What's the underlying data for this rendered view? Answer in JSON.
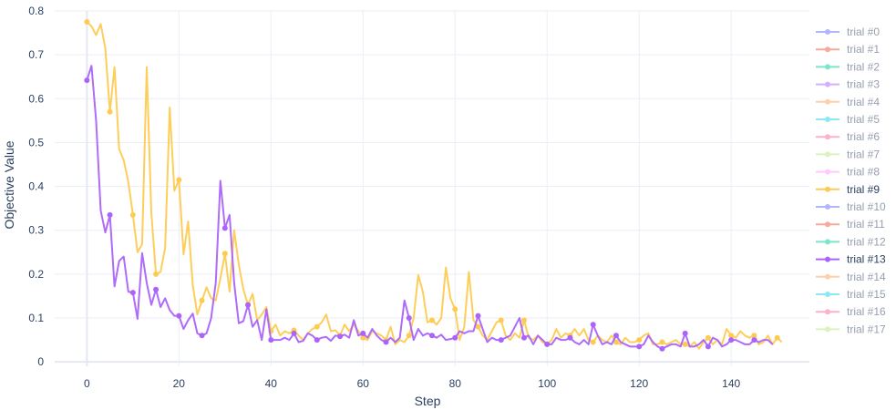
{
  "chart_data": {
    "type": "line",
    "title": "",
    "xlabel": "Step",
    "ylabel": "Objective Value",
    "xlim": [
      -7,
      157
    ],
    "ylim": [
      -0.01,
      0.8
    ],
    "x_ticks": [
      0,
      20,
      40,
      60,
      80,
      100,
      120,
      140
    ],
    "y_ticks": [
      0,
      0.1,
      0.2,
      0.3,
      0.4,
      0.5,
      0.6,
      0.7,
      0.8
    ],
    "x_tick_labels": [
      "0",
      "20",
      "40",
      "60",
      "80",
      "100",
      "120",
      "140"
    ],
    "y_tick_labels": [
      "0",
      "0.1",
      "0.2",
      "0.3",
      "0.4",
      "0.5",
      "0.6",
      "0.7",
      "0.8"
    ],
    "grid": true,
    "legend_position": "right",
    "legend": [
      {
        "name": "trial #0",
        "color": "#636efa",
        "active": false
      },
      {
        "name": "trial #1",
        "color": "#ef553b",
        "active": false
      },
      {
        "name": "trial #2",
        "color": "#00cc96",
        "active": false
      },
      {
        "name": "trial #3",
        "color": "#ab63fa",
        "active": false
      },
      {
        "name": "trial #4",
        "color": "#ffa15a",
        "active": false
      },
      {
        "name": "trial #5",
        "color": "#19d3f3",
        "active": false
      },
      {
        "name": "trial #6",
        "color": "#ff6692",
        "active": false
      },
      {
        "name": "trial #7",
        "color": "#b6e880",
        "active": false
      },
      {
        "name": "trial #8",
        "color": "#ff97ff",
        "active": false
      },
      {
        "name": "trial #9",
        "color": "#fecb52",
        "active": true
      },
      {
        "name": "trial #10",
        "color": "#636efa",
        "active": false
      },
      {
        "name": "trial #11",
        "color": "#ef553b",
        "active": false
      },
      {
        "name": "trial #12",
        "color": "#00cc96",
        "active": false
      },
      {
        "name": "trial #13",
        "color": "#ab63fa",
        "active": true
      },
      {
        "name": "trial #14",
        "color": "#ffa15a",
        "active": false
      },
      {
        "name": "trial #15",
        "color": "#19d3f3",
        "active": false
      },
      {
        "name": "trial #16",
        "color": "#ff6692",
        "active": false
      },
      {
        "name": "trial #17",
        "color": "#b6e880",
        "active": false
      }
    ],
    "series": [
      {
        "name": "trial #9",
        "color": "#fecb52",
        "marker_every": 5,
        "values": [
          0.775,
          0.765,
          0.745,
          0.77,
          0.715,
          0.57,
          0.672,
          0.485,
          0.46,
          0.41,
          0.335,
          0.25,
          0.268,
          0.672,
          0.34,
          0.2,
          0.205,
          0.26,
          0.58,
          0.39,
          0.415,
          0.245,
          0.32,
          0.175,
          0.108,
          0.14,
          0.17,
          0.145,
          0.14,
          0.19,
          0.247,
          0.16,
          0.3,
          0.222,
          0.165,
          0.13,
          0.155,
          0.095,
          0.108,
          0.125,
          0.07,
          0.085,
          0.06,
          0.07,
          0.065,
          0.072,
          0.06,
          0.05,
          0.065,
          0.075,
          0.08,
          0.09,
          0.108,
          0.07,
          0.072,
          0.06,
          0.085,
          0.07,
          0.085,
          0.07,
          0.055,
          0.05,
          0.07,
          0.065,
          0.06,
          0.05,
          0.08,
          0.04,
          0.05,
          0.045,
          0.06,
          0.1,
          0.198,
          0.16,
          0.09,
          0.095,
          0.085,
          0.1,
          0.215,
          0.145,
          0.12,
          0.05,
          0.08,
          0.205,
          0.095,
          0.08,
          0.06,
          0.05,
          0.07,
          0.09,
          0.095,
          0.06,
          0.05,
          0.065,
          0.055,
          0.095,
          0.055,
          0.05,
          0.06,
          0.045,
          0.04,
          0.05,
          0.075,
          0.055,
          0.065,
          0.06,
          0.075,
          0.06,
          0.075,
          0.05,
          0.045,
          0.06,
          0.05,
          0.045,
          0.06,
          0.045,
          0.04,
          0.055,
          0.045,
          0.045,
          0.05,
          0.06,
          0.065,
          0.04,
          0.04,
          0.045,
          0.04,
          0.045,
          0.05,
          0.04,
          0.04,
          0.035,
          0.045,
          0.03,
          0.045,
          0.055,
          0.04,
          0.05,
          0.04,
          0.075,
          0.06,
          0.055,
          0.07,
          0.06,
          0.055,
          0.06,
          0.04,
          0.045,
          0.06,
          0.04,
          0.055,
          0.045
        ]
      },
      {
        "name": "trial #13",
        "color": "#ab63fa",
        "marker_every": 5,
        "values": [
          0.642,
          0.675,
          0.55,
          0.345,
          0.295,
          0.335,
          0.172,
          0.23,
          0.24,
          0.16,
          0.158,
          0.098,
          0.248,
          0.18,
          0.13,
          0.165,
          0.125,
          0.145,
          0.118,
          0.105,
          0.105,
          0.075,
          0.095,
          0.11,
          0.065,
          0.06,
          0.065,
          0.1,
          0.18,
          0.413,
          0.305,
          0.335,
          0.18,
          0.088,
          0.093,
          0.13,
          0.08,
          0.095,
          0.05,
          0.12,
          0.05,
          0.05,
          0.05,
          0.055,
          0.05,
          0.065,
          0.045,
          0.048,
          0.065,
          0.06,
          0.05,
          0.055,
          0.057,
          0.048,
          0.06,
          0.058,
          0.062,
          0.055,
          0.095,
          0.06,
          0.065,
          0.055,
          0.075,
          0.06,
          0.05,
          0.045,
          0.055,
          0.045,
          0.055,
          0.14,
          0.1,
          0.05,
          0.075,
          0.06,
          0.065,
          0.06,
          0.055,
          0.062,
          0.05,
          0.052,
          0.055,
          0.07,
          0.065,
          0.07,
          0.07,
          0.105,
          0.075,
          0.045,
          0.055,
          0.05,
          0.05,
          0.055,
          0.06,
          0.08,
          0.1,
          0.055,
          0.06,
          0.04,
          0.06,
          0.05,
          0.04,
          0.04,
          0.055,
          0.05,
          0.05,
          0.055,
          0.045,
          0.04,
          0.05,
          0.04,
          0.085,
          0.06,
          0.04,
          0.045,
          0.04,
          0.06,
          0.045,
          0.04,
          0.035,
          0.035,
          0.035,
          0.04,
          0.06,
          0.045,
          0.035,
          0.03,
          0.035,
          0.04,
          0.04,
          0.035,
          0.065,
          0.035,
          0.035,
          0.04,
          0.05,
          0.035,
          0.055,
          0.05,
          0.035,
          0.04,
          0.05,
          0.05,
          0.045,
          0.04,
          0.04,
          0.05,
          0.045,
          0.05,
          0.05,
          0.04
        ]
      }
    ]
  }
}
